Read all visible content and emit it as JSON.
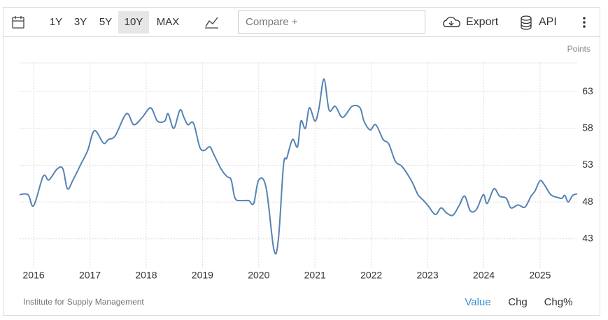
{
  "toolbar": {
    "ranges": [
      "1Y",
      "3Y",
      "5Y",
      "10Y",
      "MAX"
    ],
    "active_range": 3,
    "compare": "Compare +",
    "export": "Export",
    "api": "API"
  },
  "footer": {
    "views": [
      "Value",
      "Chg",
      "Chg%"
    ],
    "active_view": 0
  },
  "chart_data": {
    "type": "line",
    "y_label": "Points",
    "source": "Institute for Supply Management",
    "color": "#5583b3",
    "grid": true,
    "x": [
      2015.75,
      2015.9,
      2016.0,
      2016.17,
      2016.27,
      2016.42,
      2016.52,
      2016.6,
      2016.7,
      2016.83,
      2016.96,
      2017.08,
      2017.24,
      2017.33,
      2017.45,
      2017.65,
      2017.78,
      2017.93,
      2018.08,
      2018.2,
      2018.33,
      2018.39,
      2018.49,
      2018.6,
      2018.67,
      2018.74,
      2018.84,
      2018.95,
      2019.03,
      2019.13,
      2019.2,
      2019.33,
      2019.43,
      2019.51,
      2019.58,
      2019.69,
      2019.82,
      2019.91,
      2020.0,
      2020.13,
      2020.27,
      2020.35,
      2020.44,
      2020.5,
      2020.6,
      2020.69,
      2020.75,
      2020.83,
      2020.9,
      2021.0,
      2021.07,
      2021.16,
      2021.25,
      2021.36,
      2021.49,
      2021.66,
      2021.8,
      2021.87,
      2021.98,
      2022.08,
      2022.21,
      2022.31,
      2022.43,
      2022.55,
      2022.72,
      2022.83,
      2022.93,
      2023.01,
      2023.14,
      2023.24,
      2023.34,
      2023.45,
      2023.56,
      2023.66,
      2023.76,
      2023.87,
      2023.99,
      2024.06,
      2024.18,
      2024.28,
      2024.4,
      2024.48,
      2024.61,
      2024.73,
      2024.84,
      2024.91,
      2025.0,
      2025.08,
      2025.19,
      2025.32,
      2025.39,
      2025.44,
      2025.5,
      2025.58,
      2025.66
    ],
    "values": [
      49,
      49,
      47.5,
      51.5,
      51,
      52.5,
      52.5,
      49.8,
      51,
      53,
      55,
      57.7,
      56,
      56.5,
      57,
      60,
      58.5,
      59.5,
      60.8,
      59,
      59,
      60,
      58,
      60.5,
      59.5,
      58.5,
      58.7,
      55.5,
      55,
      55.5,
      54.5,
      52.5,
      51.5,
      51,
      48.5,
      48.2,
      48.2,
      47.8,
      51,
      50,
      41.5,
      43,
      53,
      54,
      56.5,
      55.5,
      59,
      58,
      60.8,
      59,
      60.7,
      64.7,
      60.5,
      61,
      59.5,
      61,
      60.8,
      59,
      57.8,
      58.5,
      56.5,
      55.9,
      53.5,
      52.8,
      50.8,
      49,
      48.2,
      47.5,
      46.3,
      47.2,
      46.5,
      46.2,
      47.5,
      48.8,
      46.8,
      47,
      49,
      47.8,
      49.8,
      48.8,
      48.5,
      47.2,
      47.6,
      47.3,
      48.8,
      49.5,
      50.9,
      50.3,
      49,
      48.6,
      48.5,
      48.9,
      48,
      48.9,
      49.1
    ],
    "xlim": [
      2015.75,
      2025.66
    ],
    "xticks": [
      2016,
      2017,
      2018,
      2019,
      2020,
      2021,
      2022,
      2023,
      2024,
      2025
    ],
    "ylim": [
      38.9,
      66.9
    ],
    "yticks": [
      43,
      48,
      53,
      58,
      63
    ]
  }
}
